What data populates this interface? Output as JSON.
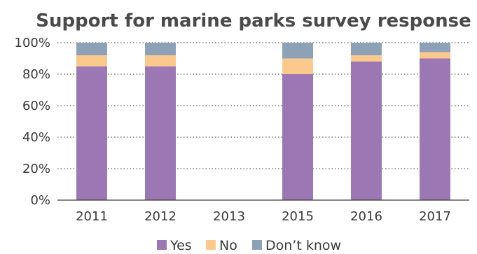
{
  "chart_data": {
    "type": "bar",
    "stacked": true,
    "title": "Support for marine parks survey response",
    "categories": [
      "2011",
      "2012",
      "2013",
      "2015",
      "2016",
      "2017"
    ],
    "series": [
      {
        "name": "Yes",
        "color": "#9b77b3",
        "values": [
          85,
          85,
          null,
          80,
          88,
          90
        ]
      },
      {
        "name": "No",
        "color": "#fbc98e",
        "values": [
          7,
          7,
          null,
          10,
          4,
          4
        ]
      },
      {
        "name": "Don’t know",
        "color": "#8da2b7",
        "values": [
          8,
          8,
          null,
          10,
          8,
          6
        ]
      }
    ],
    "y_ticks": [
      "0%",
      "20%",
      "40%",
      "60%",
      "80%",
      "100%"
    ],
    "ylim": [
      0,
      100
    ],
    "grid": true,
    "legend_position": "bottom"
  }
}
